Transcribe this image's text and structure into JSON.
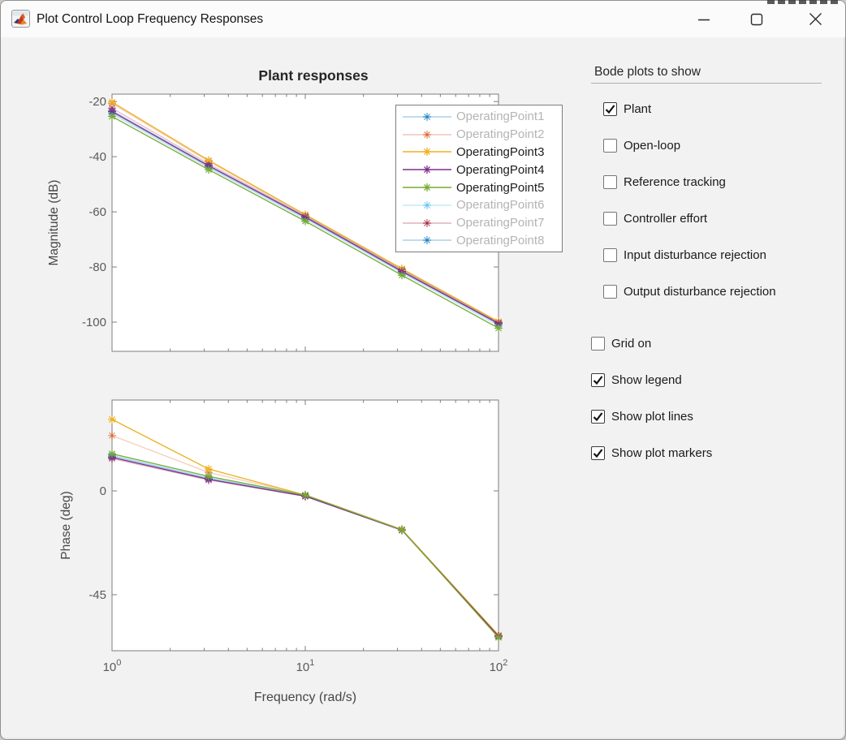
{
  "window": {
    "title": "Plot Control Loop Frequency Responses",
    "icon": "matlab-logo",
    "controls": [
      {
        "name": "minimize",
        "glyph": "minimize-line"
      },
      {
        "name": "maximize",
        "glyph": "maximize-square"
      },
      {
        "name": "close",
        "glyph": "close-x"
      }
    ]
  },
  "panel": {
    "section_title": "Bode plots to show",
    "plot_checkboxes": [
      {
        "label": "Plant",
        "checked": true
      },
      {
        "label": "Open-loop",
        "checked": false
      },
      {
        "label": "Reference tracking",
        "checked": false
      },
      {
        "label": "Controller effort",
        "checked": false
      },
      {
        "label": "Input disturbance rejection",
        "checked": false
      },
      {
        "label": "Output disturbance rejection",
        "checked": false
      }
    ],
    "display_checkboxes": [
      {
        "label": "Grid on",
        "checked": false
      },
      {
        "label": "Show legend",
        "checked": true
      },
      {
        "label": "Show plot lines",
        "checked": true
      },
      {
        "label": "Show plot markers",
        "checked": true
      }
    ]
  },
  "chart_data": [
    {
      "id": "magnitude",
      "type": "line",
      "title": "Plant responses",
      "ylabel": "Magnitude (dB)",
      "xlabel": "",
      "xscale": "log",
      "xlim": [
        1,
        100
      ],
      "ylim": [
        -110.6,
        -17.3
      ],
      "yticks": [
        -20,
        -40,
        -60,
        -80,
        -100
      ],
      "xticks": [
        {
          "value": 1,
          "base": "10",
          "exponent": "0"
        },
        {
          "value": 10,
          "base": "10",
          "exponent": "1"
        },
        {
          "value": 100,
          "base": "10",
          "exponent": "2"
        }
      ],
      "show_x_tick_labels": false,
      "grid": false,
      "legend_visible": true,
      "legend_position": "northeast",
      "marker": "*",
      "x": [
        1,
        3.162,
        10,
        31.62,
        100
      ],
      "series": [
        {
          "name": "OperatingPoint1",
          "color": "#0072BD",
          "dimmed": true,
          "values": [
            -23.2,
            -43.1,
            -61.7,
            -81.3,
            -100.3
          ]
        },
        {
          "name": "OperatingPoint2",
          "color": "#D95319",
          "dimmed": true,
          "values": [
            -20.7,
            -41.7,
            -61.2,
            -80.9,
            -100.0
          ]
        },
        {
          "name": "OperatingPoint3",
          "color": "#EDB120",
          "dimmed": false,
          "values": [
            -20.2,
            -41.3,
            -61.0,
            -80.6,
            -99.8
          ]
        },
        {
          "name": "OperatingPoint4",
          "color": "#7E2F8E",
          "dimmed": false,
          "values": [
            -23.6,
            -43.3,
            -61.9,
            -81.6,
            -100.5
          ]
        },
        {
          "name": "OperatingPoint5",
          "color": "#77AC30",
          "dimmed": false,
          "values": [
            -25.4,
            -44.7,
            -63.4,
            -83.0,
            -102.2
          ]
        },
        {
          "name": "OperatingPoint6",
          "color": "#4DBEEE",
          "dimmed": true,
          "values": [
            -24.6,
            -44.1,
            -62.7,
            -82.3,
            -101.4
          ]
        },
        {
          "name": "OperatingPoint7",
          "color": "#A2142F",
          "dimmed": true,
          "values": [
            -22.4,
            -42.6,
            -61.5,
            -81.1,
            -100.2
          ]
        },
        {
          "name": "OperatingPoint8",
          "color": "#0072BD",
          "dimmed": true,
          "values": [
            -24.1,
            -43.7,
            -62.3,
            -81.9,
            -100.9
          ]
        }
      ]
    },
    {
      "id": "phase",
      "type": "line",
      "title": "",
      "ylabel": "Phase (deg)",
      "xlabel": "Frequency (rad/s)",
      "xscale": "log",
      "xlim": [
        1,
        100
      ],
      "ylim": [
        -69.3,
        39.4
      ],
      "yticks": [
        0,
        -45
      ],
      "xticks": [
        {
          "value": 1,
          "base": "10",
          "exponent": "0"
        },
        {
          "value": 10,
          "base": "10",
          "exponent": "1"
        },
        {
          "value": 100,
          "base": "10",
          "exponent": "2"
        }
      ],
      "show_x_tick_labels": true,
      "grid": false,
      "legend_visible": false,
      "marker": "*",
      "x": [
        1,
        3.162,
        10,
        31.62,
        100
      ],
      "series": [
        {
          "name": "OperatingPoint1",
          "color": "#0072BD",
          "dimmed": true,
          "values": [
            15.2,
            5.5,
            -2.0,
            -16.8,
            -62.7
          ]
        },
        {
          "name": "OperatingPoint2",
          "color": "#D95319",
          "dimmed": true,
          "values": [
            24.0,
            8.0,
            -1.7,
            -16.6,
            -62.5
          ]
        },
        {
          "name": "OperatingPoint3",
          "color": "#EDB120",
          "dimmed": false,
          "values": [
            31.0,
            9.5,
            -1.8,
            -16.8,
            -62.5
          ]
        },
        {
          "name": "OperatingPoint4",
          "color": "#7E2F8E",
          "dimmed": false,
          "values": [
            14.5,
            5.0,
            -2.3,
            -17.0,
            -63.0
          ]
        },
        {
          "name": "OperatingPoint5",
          "color": "#77AC30",
          "dimmed": false,
          "values": [
            16.1,
            6.3,
            -1.8,
            -16.9,
            -63.6
          ]
        },
        {
          "name": "OperatingPoint6",
          "color": "#4DBEEE",
          "dimmed": true,
          "values": [
            15.6,
            5.8,
            -2.1,
            -16.9,
            -63.1
          ]
        },
        {
          "name": "OperatingPoint7",
          "color": "#A2142F",
          "dimmed": true,
          "values": [
            14.0,
            4.7,
            -2.4,
            -17.1,
            -62.9
          ]
        },
        {
          "name": "OperatingPoint8",
          "color": "#0072BD",
          "dimmed": true,
          "values": [
            14.8,
            5.2,
            -2.2,
            -17.0,
            -62.8
          ]
        }
      ]
    }
  ]
}
